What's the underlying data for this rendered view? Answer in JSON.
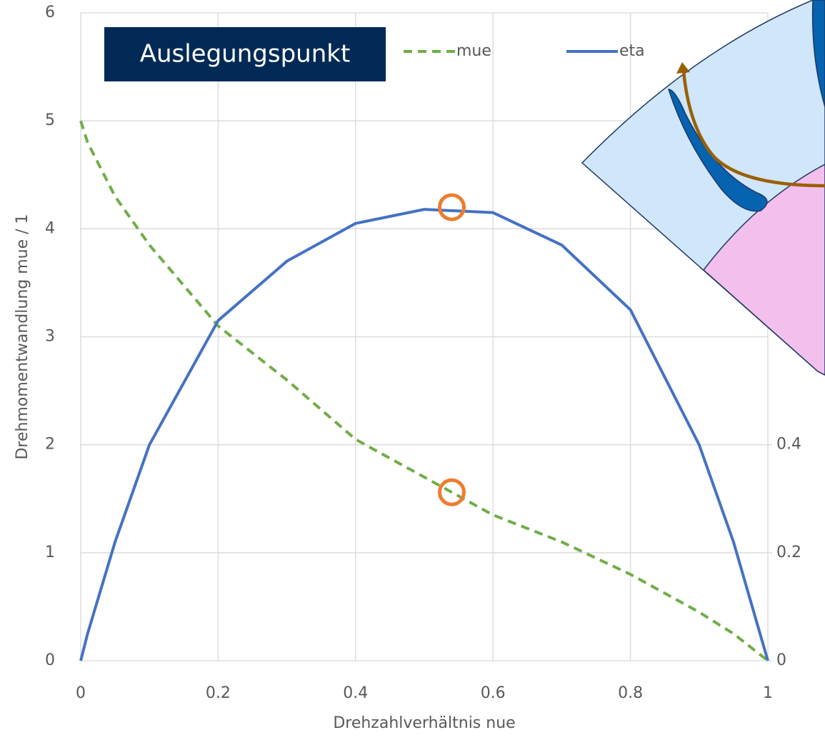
{
  "chart_data": {
    "type": "line",
    "x_label": "Drehzahlverhältnis nue",
    "y_label": "Drehmomentwandlung mue / 1",
    "annotation": "Auslegungspunkt",
    "x": [
      0,
      0.01,
      0.05,
      0.1,
      0.2,
      0.3,
      0.4,
      0.5,
      0.6,
      0.7,
      0.8,
      0.9,
      0.95,
      1
    ],
    "series": [
      {
        "name": "mue",
        "color": "#70ad47",
        "dashed": true,
        "values": [
          5,
          4.8,
          4.3,
          3.85,
          3.1,
          2.6,
          2.05,
          1.7,
          1.35,
          1.1,
          0.8,
          0.45,
          0.25,
          0
        ]
      },
      {
        "name": "eta",
        "color": "#4472c4",
        "axis": "y2",
        "values": [
          0,
          0.05,
          0.22,
          0.4,
          0.63,
          0.74,
          0.81,
          0.836,
          0.83,
          0.77,
          0.65,
          0.4,
          0.22,
          0
        ]
      }
    ],
    "design_point": {
      "x": 0.54,
      "mue": 1.56,
      "eta": 0.84,
      "color": "#ed7d31"
    },
    "xlim": [
      0,
      1
    ],
    "xticks": [
      0,
      0.2,
      0.4,
      0.6,
      0.8,
      1
    ],
    "ylim": [
      0,
      6
    ],
    "yticks": [
      0,
      1,
      2,
      3,
      4,
      5,
      6
    ],
    "y2lim": [
      0,
      1.2
    ],
    "y2ticks": [
      0,
      0.2,
      0.4
    ],
    "grid": true
  }
}
